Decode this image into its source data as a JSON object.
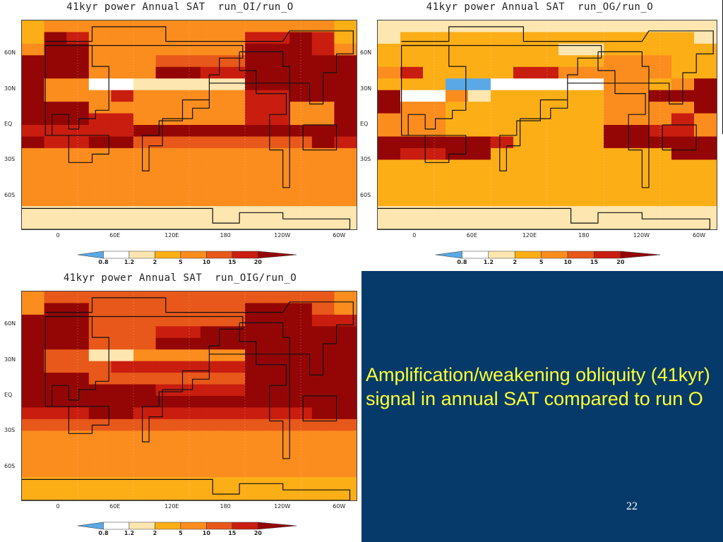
{
  "slide": {
    "caption": "Amplification/weakening obliquity (41kyr) signal in annual SAT compared to run O",
    "page_number": "22"
  },
  "colorbar": {
    "labels": [
      "0.8",
      "1.2",
      "2",
      "5",
      "10",
      "15",
      "20"
    ],
    "colors": [
      "#5aa9e6",
      "#ffffff",
      "#fde6b0",
      "#fcae17",
      "#fb8c1e",
      "#e8581a",
      "#c91d10",
      "#940606"
    ]
  },
  "axes": {
    "lat_labels": [
      "60N",
      "30N",
      "EQ",
      "30S",
      "60S"
    ],
    "lon_labels": [
      "0",
      "60E",
      "120E",
      "180",
      "120W",
      "60W"
    ]
  },
  "maps": [
    {
      "title": "41kyr power Annual SAT  run_OI/run_O",
      "grid": [
        [
          3,
          4,
          4,
          4,
          4,
          4,
          4,
          4,
          4,
          4,
          4,
          4,
          4,
          4,
          3
        ],
        [
          3,
          7,
          6,
          4,
          4,
          4,
          4,
          4,
          4,
          4,
          6,
          6,
          7,
          6,
          3
        ],
        [
          4,
          7,
          7,
          4,
          4,
          4,
          4,
          4,
          4,
          4,
          7,
          7,
          7,
          6,
          4
        ],
        [
          7,
          7,
          7,
          4,
          4,
          4,
          5,
          5,
          5,
          5,
          7,
          7,
          7,
          7,
          7
        ],
        [
          7,
          7,
          7,
          4,
          4,
          4,
          7,
          7,
          6,
          6,
          7,
          7,
          7,
          7,
          7
        ],
        [
          7,
          4,
          4,
          1,
          1,
          2,
          2,
          2,
          2,
          2,
          7,
          7,
          7,
          7,
          7
        ],
        [
          7,
          4,
          4,
          4,
          6,
          4,
          4,
          4,
          4,
          4,
          6,
          6,
          7,
          7,
          7
        ],
        [
          7,
          7,
          7,
          4,
          4,
          4,
          4,
          4,
          4,
          4,
          6,
          6,
          4,
          4,
          7
        ],
        [
          7,
          7,
          7,
          6,
          6,
          4,
          4,
          4,
          4,
          4,
          6,
          6,
          4,
          4,
          7
        ],
        [
          6,
          6,
          6,
          6,
          6,
          7,
          7,
          7,
          7,
          7,
          7,
          7,
          7,
          7,
          7
        ],
        [
          7,
          6,
          6,
          7,
          7,
          5,
          5,
          5,
          5,
          5,
          5,
          5,
          5,
          7,
          6
        ],
        [
          4,
          4,
          4,
          4,
          4,
          4,
          4,
          4,
          4,
          4,
          4,
          4,
          4,
          4,
          4
        ],
        [
          4,
          4,
          4,
          4,
          4,
          4,
          4,
          4,
          4,
          4,
          4,
          4,
          4,
          4,
          4
        ],
        [
          4,
          4,
          4,
          4,
          4,
          4,
          4,
          4,
          4,
          4,
          4,
          4,
          4,
          4,
          4
        ],
        [
          4,
          4,
          4,
          4,
          4,
          4,
          4,
          4,
          4,
          4,
          4,
          4,
          4,
          4,
          4
        ],
        [
          4,
          4,
          4,
          4,
          4,
          4,
          4,
          4,
          4,
          4,
          4,
          4,
          4,
          4,
          4
        ],
        [
          2,
          2,
          2,
          2,
          2,
          2,
          2,
          2,
          2,
          2,
          2,
          2,
          2,
          2,
          2
        ],
        [
          2,
          2,
          2,
          2,
          2,
          2,
          2,
          2,
          2,
          2,
          2,
          2,
          2,
          2,
          2
        ]
      ]
    },
    {
      "title": "41kyr power Annual SAT  run_OG/run_O",
      "grid": [
        [
          2,
          2,
          2,
          2,
          2,
          2,
          2,
          2,
          2,
          2,
          2,
          2,
          2,
          2,
          2
        ],
        [
          2,
          3,
          3,
          3,
          3,
          3,
          3,
          3,
          3,
          3,
          3,
          3,
          3,
          3,
          2
        ],
        [
          3,
          3,
          3,
          3,
          3,
          3,
          3,
          3,
          2,
          2,
          3,
          3,
          3,
          3,
          3
        ],
        [
          3,
          3,
          3,
          3,
          3,
          3,
          3,
          3,
          3,
          3,
          4,
          4,
          4,
          3,
          3
        ],
        [
          4,
          6,
          3,
          3,
          3,
          3,
          6,
          6,
          4,
          4,
          4,
          4,
          4,
          3,
          3
        ],
        [
          3,
          3,
          3,
          0,
          0,
          1,
          1,
          1,
          1,
          1,
          4,
          4,
          3,
          4,
          7
        ],
        [
          7,
          1,
          1,
          4,
          2,
          3,
          3,
          3,
          3,
          3,
          4,
          4,
          7,
          7,
          7
        ],
        [
          7,
          4,
          4,
          3,
          3,
          3,
          3,
          3,
          3,
          3,
          4,
          4,
          4,
          4,
          7
        ],
        [
          4,
          4,
          4,
          3,
          3,
          3,
          3,
          3,
          3,
          3,
          4,
          4,
          4,
          6,
          4
        ],
        [
          4,
          4,
          4,
          3,
          3,
          3,
          3,
          3,
          3,
          3,
          7,
          7,
          6,
          6,
          4
        ],
        [
          7,
          7,
          7,
          7,
          7,
          6,
          3,
          3,
          3,
          3,
          7,
          7,
          7,
          7,
          7
        ],
        [
          7,
          6,
          6,
          7,
          7,
          3,
          3,
          3,
          3,
          3,
          3,
          3,
          3,
          7,
          7
        ],
        [
          3,
          3,
          3,
          3,
          3,
          3,
          3,
          3,
          3,
          3,
          3,
          3,
          3,
          3,
          3
        ],
        [
          3,
          3,
          3,
          3,
          3,
          3,
          3,
          3,
          3,
          3,
          3,
          3,
          3,
          3,
          3
        ],
        [
          3,
          3,
          3,
          3,
          3,
          3,
          3,
          3,
          3,
          3,
          3,
          3,
          3,
          3,
          3
        ],
        [
          3,
          3,
          3,
          3,
          3,
          3,
          3,
          3,
          3,
          3,
          3,
          3,
          3,
          3,
          3
        ],
        [
          2,
          2,
          2,
          2,
          2,
          2,
          2,
          2,
          2,
          2,
          2,
          2,
          2,
          2,
          2
        ],
        [
          2,
          2,
          2,
          2,
          2,
          2,
          2,
          2,
          2,
          2,
          2,
          2,
          2,
          2,
          2
        ]
      ]
    },
    {
      "title": "41kyr power Annual SAT  run_OIG/run_O",
      "grid": [
        [
          4,
          5,
          5,
          5,
          5,
          5,
          5,
          5,
          5,
          5,
          5,
          5,
          5,
          5,
          4
        ],
        [
          4,
          7,
          7,
          5,
          5,
          5,
          5,
          5,
          5,
          5,
          7,
          7,
          7,
          5,
          4
        ],
        [
          7,
          7,
          7,
          5,
          5,
          5,
          5,
          5,
          5,
          5,
          7,
          7,
          7,
          6,
          6
        ],
        [
          7,
          7,
          7,
          5,
          5,
          5,
          6,
          6,
          7,
          7,
          7,
          7,
          7,
          7,
          7
        ],
        [
          7,
          7,
          7,
          5,
          5,
          5,
          7,
          7,
          7,
          7,
          7,
          7,
          7,
          7,
          7
        ],
        [
          7,
          5,
          5,
          2,
          2,
          4,
          4,
          4,
          4,
          4,
          7,
          7,
          7,
          7,
          7
        ],
        [
          7,
          5,
          5,
          5,
          6,
          6,
          6,
          6,
          6,
          6,
          7,
          7,
          7,
          7,
          7
        ],
        [
          7,
          7,
          7,
          5,
          5,
          5,
          5,
          5,
          5,
          5,
          7,
          7,
          7,
          7,
          7
        ],
        [
          7,
          7,
          7,
          7,
          7,
          7,
          6,
          6,
          6,
          6,
          7,
          7,
          7,
          7,
          7
        ],
        [
          7,
          7,
          7,
          7,
          7,
          7,
          7,
          7,
          7,
          7,
          7,
          7,
          7,
          7,
          7
        ],
        [
          6,
          6,
          6,
          7,
          7,
          6,
          6,
          6,
          6,
          6,
          6,
          6,
          6,
          7,
          7
        ],
        [
          5,
          5,
          5,
          5,
          5,
          5,
          5,
          5,
          5,
          5,
          5,
          5,
          5,
          5,
          5
        ],
        [
          4,
          4,
          4,
          4,
          4,
          4,
          4,
          4,
          4,
          4,
          4,
          4,
          4,
          4,
          4
        ],
        [
          4,
          4,
          4,
          4,
          4,
          4,
          4,
          4,
          4,
          4,
          4,
          4,
          4,
          4,
          4
        ],
        [
          4,
          4,
          4,
          4,
          4,
          4,
          4,
          4,
          4,
          4,
          4,
          4,
          4,
          4,
          4
        ],
        [
          4,
          4,
          4,
          4,
          4,
          4,
          4,
          4,
          4,
          4,
          4,
          4,
          4,
          4,
          4
        ],
        [
          3,
          3,
          3,
          3,
          3,
          3,
          3,
          3,
          3,
          3,
          3,
          3,
          3,
          3,
          3
        ],
        [
          3,
          3,
          3,
          3,
          3,
          3,
          3,
          3,
          3,
          3,
          3,
          3,
          3,
          3,
          3
        ]
      ]
    }
  ]
}
